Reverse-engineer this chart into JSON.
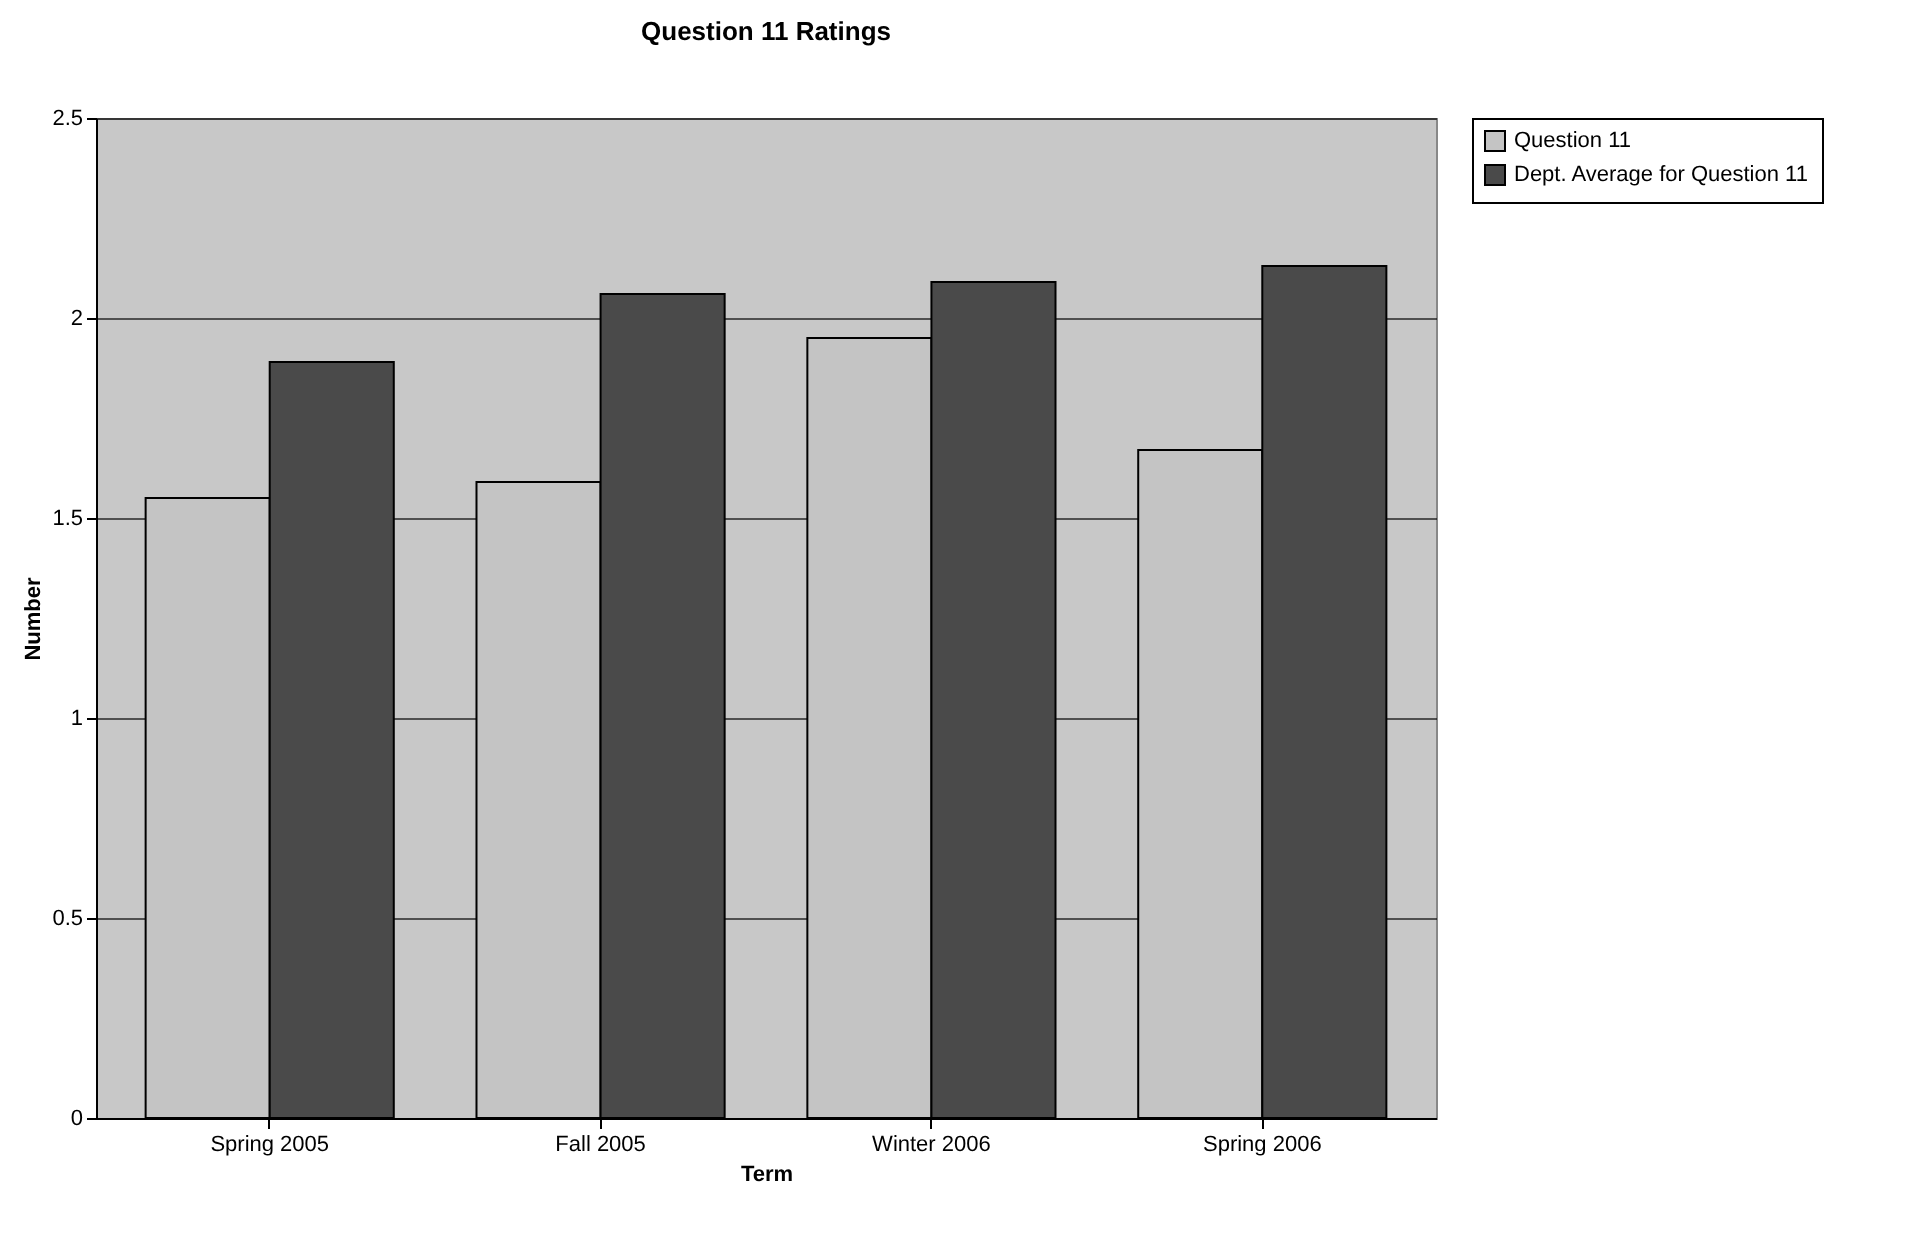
{
  "chart_data": {
    "type": "bar",
    "title": "Question 11 Ratings",
    "xlabel": "Term",
    "ylabel": "Number",
    "categories": [
      "Spring 2005",
      "Fall 2005",
      "Winter 2006",
      "Spring 2006"
    ],
    "series": [
      {
        "name": "Question 11",
        "color": "#c4c4c4",
        "values": [
          1.55,
          1.59,
          1.95,
          1.67
        ]
      },
      {
        "name": "Dept. Average for Question 11",
        "color": "#4a4a4a",
        "values": [
          1.89,
          2.06,
          2.09,
          2.13
        ]
      }
    ],
    "ylim": [
      0,
      2.5
    ],
    "yticks": [
      0,
      0.5,
      1,
      1.5,
      2,
      2.5
    ],
    "grid": "y",
    "legend": "right"
  }
}
